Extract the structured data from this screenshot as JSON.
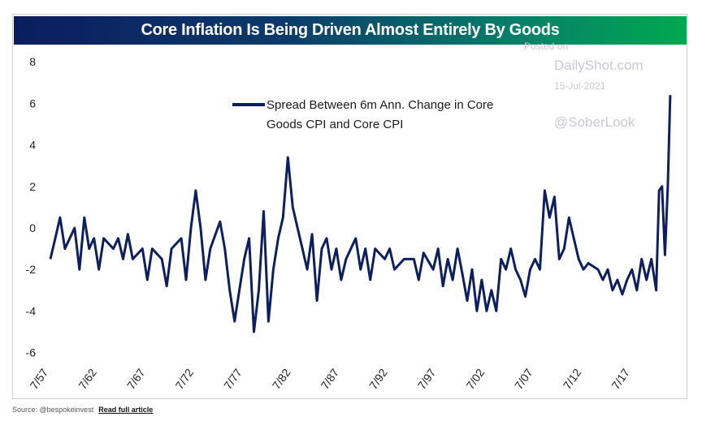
{
  "chart_data": {
    "type": "line",
    "title": "Core Inflation Is Being Driven Almost Entirely By Goods",
    "xlabel": "",
    "ylabel": "",
    "ylim": [
      -6,
      8
    ],
    "yticks": [
      "8",
      "6",
      "4",
      "2",
      "0",
      "-2",
      "-4",
      "-6"
    ],
    "xticks": [
      "7/57",
      "7/62",
      "7/67",
      "7/72",
      "7/77",
      "7/82",
      "7/87",
      "7/92",
      "7/97",
      "7/02",
      "7/07",
      "7/12",
      "7/17"
    ],
    "xlim": [
      1957.5,
      2021.6
    ],
    "grid": false,
    "legend_placement": "top-center",
    "series": [
      {
        "name": "Spread Between 6m Ann. Change in Core Goods CPI and Core CPI",
        "color": "#0d1f5c",
        "x": [
          1957.5,
          1958,
          1958.5,
          1959,
          1960,
          1960.5,
          1961,
          1961.5,
          1962,
          1962.5,
          1963,
          1964,
          1964.5,
          1965,
          1965.5,
          1966,
          1967,
          1967.5,
          1968,
          1969,
          1969.5,
          1970,
          1971,
          1971.5,
          1972,
          1972.5,
          1973,
          1973.5,
          1974,
          1975,
          1975.5,
          1976,
          1976.5,
          1977,
          1977.5,
          1978,
          1978.5,
          1979,
          1979.5,
          1980,
          1980.5,
          1981,
          1981.5,
          1982,
          1982.5,
          1983,
          1983.5,
          1984,
          1984.5,
          1985,
          1985.5,
          1986,
          1986.5,
          1987,
          1987.5,
          1988,
          1989,
          1989.5,
          1990,
          1990.5,
          1991,
          1992,
          1992.5,
          1993,
          1994,
          1995,
          1995.5,
          1996,
          1997,
          1997.5,
          1998,
          1998.5,
          1999,
          1999.5,
          2000,
          2000.5,
          2001,
          2001.5,
          2002,
          2002.5,
          2003,
          2003.5,
          2004,
          2004.5,
          2005,
          2005.5,
          2006,
          2006.5,
          2007,
          2007.5,
          2008,
          2008.5,
          2009,
          2009.5,
          2010,
          2010.5,
          2011,
          2011.5,
          2012,
          2012.5,
          2013,
          2014,
          2014.5,
          2015,
          2015.5,
          2016,
          2016.5,
          2017,
          2017.5,
          2018,
          2018.5,
          2019,
          2019.5,
          2020,
          2020.3,
          2020.6,
          2020.9,
          2021.2,
          2021.45
        ],
        "y": [
          -1.5,
          -0.5,
          0.5,
          -1,
          0,
          -2,
          0.5,
          -1,
          -0.5,
          -2,
          -0.5,
          -1,
          -0.5,
          -1.5,
          -0.3,
          -1.5,
          -1,
          -2.5,
          -1,
          -1.5,
          -2.8,
          -1,
          -0.5,
          -2.5,
          0,
          1.8,
          0,
          -2.5,
          -1,
          0.3,
          -1,
          -3,
          -4.5,
          -3,
          -1.5,
          -0.5,
          -5,
          -3,
          0.8,
          -4.5,
          -2,
          -0.5,
          0.5,
          3.4,
          1,
          0,
          -1,
          -2,
          -0.3,
          -3.5,
          -1,
          -0.5,
          -2,
          -1,
          -2.5,
          -1.5,
          -0.5,
          -2,
          -1,
          -2.5,
          -1,
          -1.5,
          -1,
          -2,
          -1.5,
          -1.5,
          -2.5,
          -1.2,
          -2,
          -1,
          -2.8,
          -1.5,
          -2.5,
          -1,
          -2.2,
          -3.5,
          -2,
          -4,
          -2.5,
          -4,
          -3,
          -4,
          -1.5,
          -2,
          -1,
          -2,
          -2.5,
          -3.3,
          -2,
          -1.5,
          -2,
          1.8,
          0.5,
          1.5,
          -1.5,
          -1,
          0.5,
          -0.5,
          -1.5,
          -2,
          -1.7,
          -2,
          -2.5,
          -2,
          -3,
          -2.5,
          -3.2,
          -2.5,
          -2,
          -3,
          -1.5,
          -2.5,
          -1.5,
          -3,
          1.8,
          2,
          -1.3,
          2,
          6.4
        ]
      }
    ],
    "legend": [
      "Spread Between 6m Ann. Change in Core",
      "Goods CPI and Core CPI"
    ]
  },
  "watermark": {
    "posted": "Posted on",
    "site": "DailyShot.com",
    "date": "15-Jul-2021",
    "handle": "@SoberLook"
  },
  "footer": {
    "source": "Source: @bespokeinvest",
    "link": "Read full article"
  }
}
